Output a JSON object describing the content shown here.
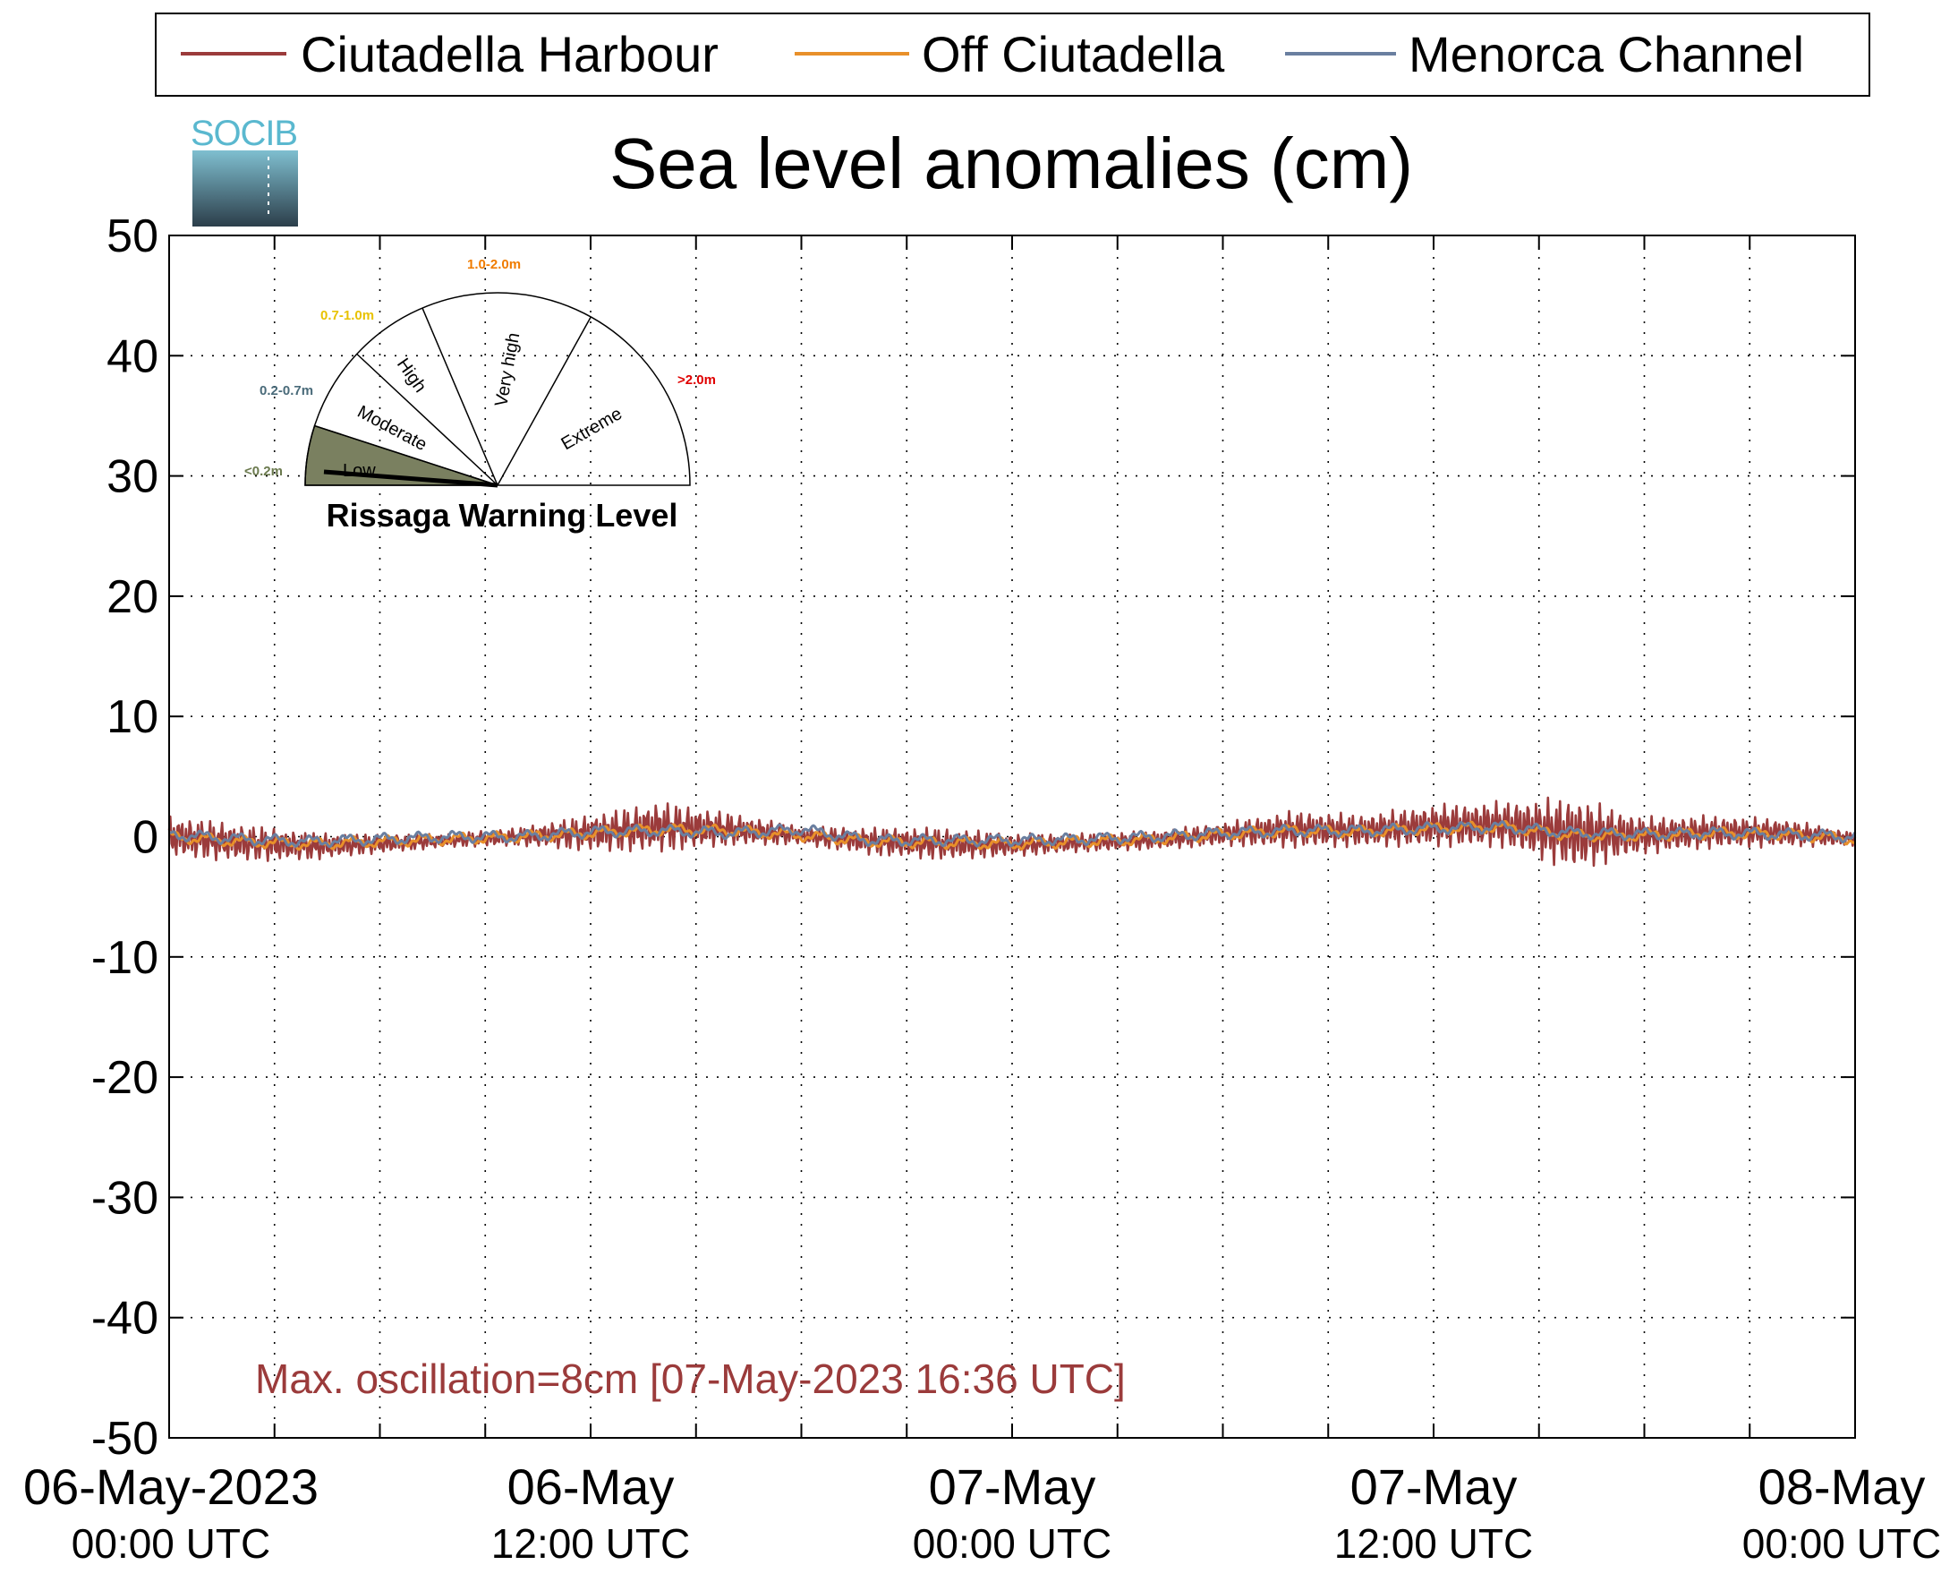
{
  "chart_data": {
    "type": "line",
    "title": "Sea level anomalies (cm)",
    "xlabel": "",
    "ylabel": "",
    "ylim": [
      -50,
      50
    ],
    "yticks": [
      50,
      40,
      30,
      20,
      10,
      0,
      -10,
      -20,
      -30,
      -40,
      -50
    ],
    "yticklabels": [
      "50",
      "40",
      "30",
      "20",
      "10",
      "0",
      "-10",
      "-20",
      "-30",
      "-40",
      "-50"
    ],
    "xlim": [
      "2023-05-06 00:00",
      "2023-05-08 00:00"
    ],
    "xticks": [
      {
        "time": "2023-05-06 00:00",
        "line1": "06-May-2023",
        "line2": "00:00 UTC"
      },
      {
        "time": "2023-05-06 12:00",
        "line1": "06-May",
        "line2": "12:00 UTC"
      },
      {
        "time": "2023-05-07 00:00",
        "line1": "07-May",
        "line2": "00:00 UTC"
      },
      {
        "time": "2023-05-07 12:00",
        "line1": "07-May",
        "line2": "12:00 UTC"
      },
      {
        "time": "2023-05-08 00:00",
        "line1": "08-May",
        "line2": "00:00 UTC"
      }
    ],
    "grid": true,
    "legend_position": "top",
    "series": [
      {
        "name": "Ciutadella Harbour",
        "color": "#9b3b3b",
        "times": [
          "2023-05-06 00:00",
          "2023-05-06 02:00",
          "2023-05-06 04:00",
          "2023-05-06 06:00",
          "2023-05-06 08:00",
          "2023-05-06 10:00",
          "2023-05-06 12:00",
          "2023-05-06 14:00",
          "2023-05-06 16:00",
          "2023-05-06 18:00",
          "2023-05-06 20:00",
          "2023-05-06 22:00",
          "2023-05-07 00:00",
          "2023-05-07 02:00",
          "2023-05-07 04:00",
          "2023-05-07 06:00",
          "2023-05-07 08:00",
          "2023-05-07 10:00",
          "2023-05-07 12:00",
          "2023-05-07 14:00",
          "2023-05-07 16:00",
          "2023-05-07 18:00",
          "2023-05-07 20:00",
          "2023-05-07 22:00",
          "2023-05-08 00:00"
        ],
        "values": [
          0.0,
          -0.5,
          -0.8,
          -0.6,
          -0.3,
          0.0,
          0.3,
          0.8,
          0.6,
          0.1,
          -0.4,
          -0.6,
          -0.7,
          -0.5,
          -0.3,
          0.2,
          0.6,
          0.5,
          0.9,
          1.0,
          0.2,
          0.1,
          0.4,
          0.3,
          -0.2
        ],
        "amplitude": [
          1.8,
          1.6,
          1.2,
          0.8,
          0.6,
          0.8,
          1.6,
          2.2,
          1.4,
          0.8,
          1.2,
          1.4,
          1.0,
          0.8,
          0.8,
          1.0,
          1.6,
          1.4,
          1.8,
          2.0,
          3.2,
          1.6,
          1.4,
          1.2,
          0.6
        ]
      },
      {
        "name": "Off Ciutadella",
        "color": "#e8902a",
        "times": [
          "2023-05-06 00:00",
          "2023-05-06 02:00",
          "2023-05-06 04:00",
          "2023-05-06 06:00",
          "2023-05-06 08:00",
          "2023-05-06 10:00",
          "2023-05-06 12:00",
          "2023-05-06 14:00",
          "2023-05-06 16:00",
          "2023-05-06 18:00",
          "2023-05-06 20:00",
          "2023-05-06 22:00",
          "2023-05-07 00:00",
          "2023-05-07 02:00",
          "2023-05-07 04:00",
          "2023-05-07 06:00",
          "2023-05-07 08:00",
          "2023-05-07 10:00",
          "2023-05-07 12:00",
          "2023-05-07 14:00",
          "2023-05-07 16:00",
          "2023-05-07 18:00",
          "2023-05-07 20:00",
          "2023-05-07 22:00",
          "2023-05-08 00:00"
        ],
        "values": [
          0.0,
          -0.4,
          -0.6,
          -0.4,
          -0.2,
          0.0,
          0.3,
          0.6,
          0.5,
          0.1,
          -0.4,
          -0.5,
          -0.6,
          -0.4,
          -0.2,
          0.2,
          0.5,
          0.4,
          0.7,
          0.8,
          0.1,
          0.1,
          0.3,
          0.2,
          -0.2
        ]
      },
      {
        "name": "Menorca Channel",
        "color": "#6a7fa0",
        "times": [
          "2023-05-06 00:00",
          "2023-05-06 02:00",
          "2023-05-06 04:00",
          "2023-05-06 06:00",
          "2023-05-06 08:00",
          "2023-05-06 10:00",
          "2023-05-06 12:00",
          "2023-05-06 14:00",
          "2023-05-06 16:00",
          "2023-05-06 18:00",
          "2023-05-06 20:00",
          "2023-05-06 22:00",
          "2023-05-07 00:00",
          "2023-05-07 02:00",
          "2023-05-07 04:00",
          "2023-05-07 06:00",
          "2023-05-07 08:00",
          "2023-05-07 10:00",
          "2023-05-07 12:00",
          "2023-05-07 14:00",
          "2023-05-07 16:00",
          "2023-05-07 18:00",
          "2023-05-07 20:00",
          "2023-05-07 22:00",
          "2023-05-08 00:00"
        ],
        "values": [
          0.2,
          -0.2,
          -0.4,
          -0.2,
          0.0,
          0.0,
          0.4,
          0.5,
          0.3,
          0.6,
          -0.3,
          -0.3,
          -0.3,
          -0.2,
          0.0,
          0.3,
          0.5,
          0.5,
          0.7,
          0.8,
          0.3,
          0.2,
          0.3,
          0.2,
          0.0
        ]
      }
    ],
    "annotation": "Max. oscillation=8cm [07-May-2023 16:36 UTC]",
    "annotation_color": "#9b3b3b"
  },
  "logo": {
    "text": "SOCIB"
  },
  "gauge": {
    "title": "Rissaga Warning Level",
    "current_level": "Low",
    "sectors": [
      {
        "label": "Low",
        "range": "<0.2m",
        "range_color": "#6b7a4e"
      },
      {
        "label": "Moderate",
        "range": "0.2-0.7m",
        "range_color": "#4a6b7a"
      },
      {
        "label": "High",
        "range": "0.7-1.0m",
        "range_color": "#e8c200"
      },
      {
        "label": "Very high",
        "range": "1.0-2.0m",
        "range_color": "#f07c00"
      },
      {
        "label": "Extreme",
        "range": ">2.0m",
        "range_color": "#e00000"
      }
    ],
    "active_fill": "#7a8060"
  }
}
